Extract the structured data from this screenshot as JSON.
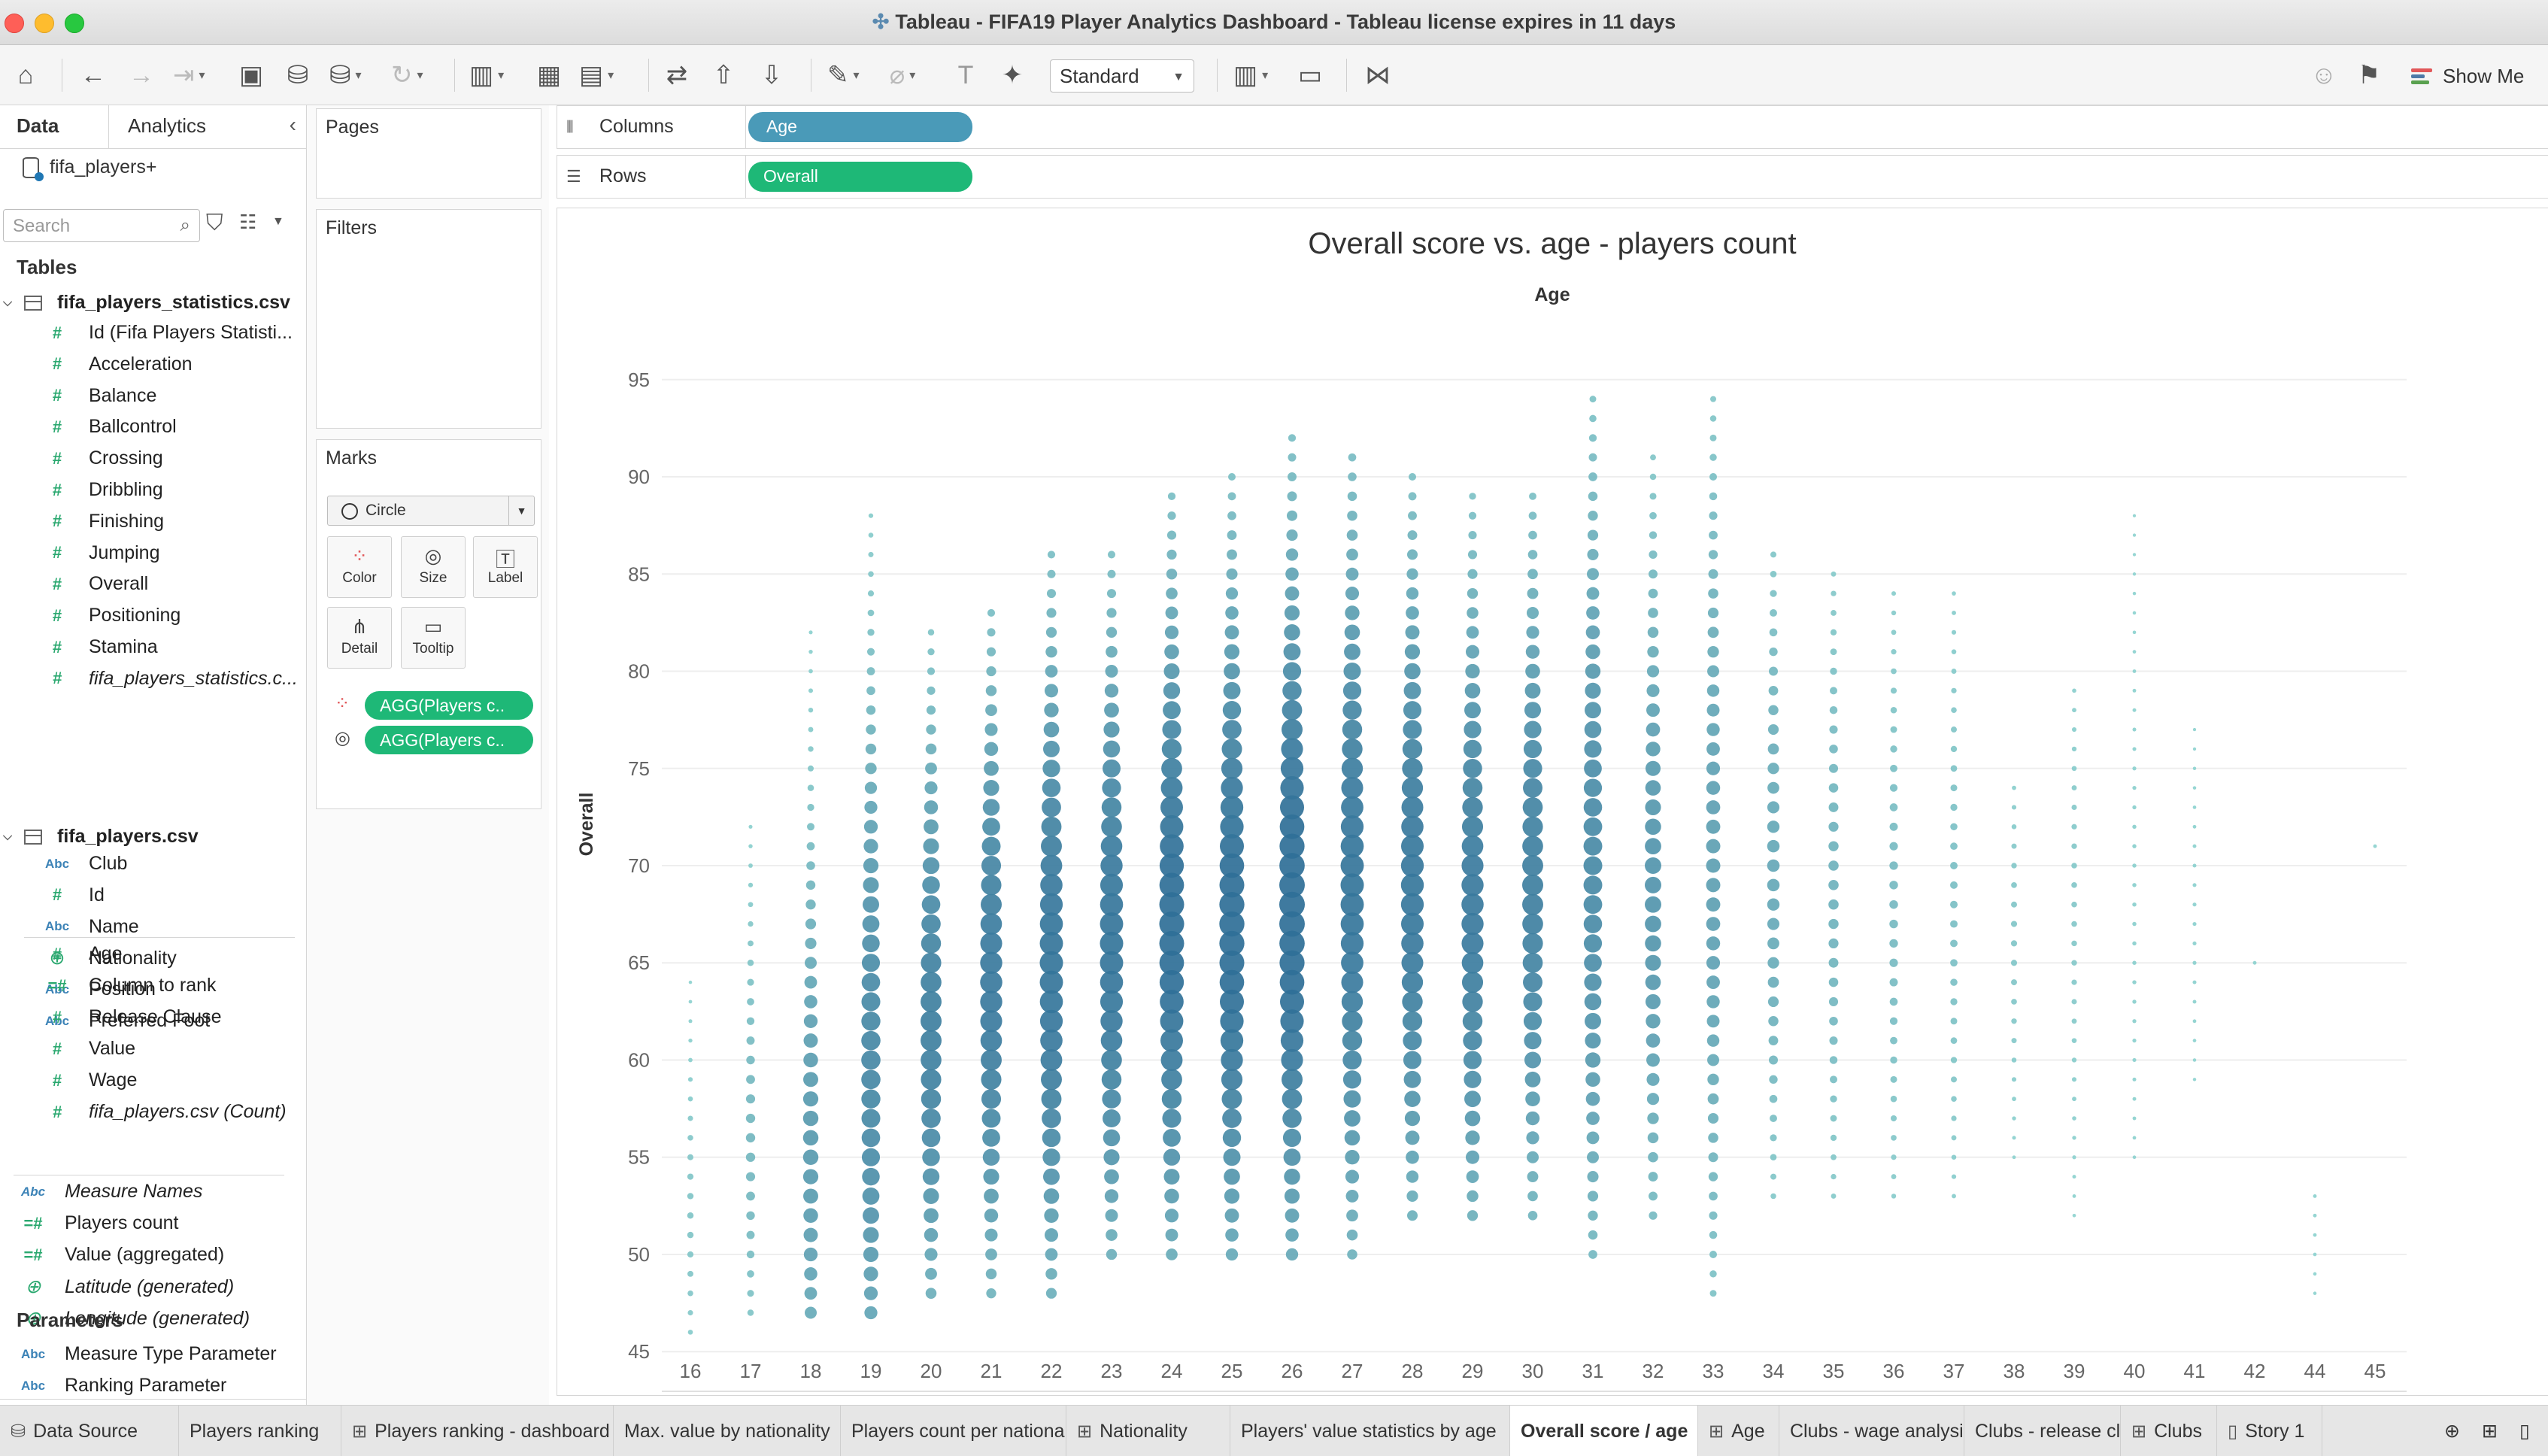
{
  "window": {
    "title": "Tableau - FIFA19 Player Analytics Dashboard  - Tableau license expires in 11 days"
  },
  "toolbar": {
    "fit_value": "Standard",
    "show_me_label": "Show Me",
    "show_me_colors": [
      "#e15759",
      "#4e79a7",
      "#59a14f",
      "#b07aa1"
    ]
  },
  "data_pane": {
    "tabs": {
      "data": "Data",
      "analytics": "Analytics"
    },
    "datasource": "fifa_players+",
    "search_placeholder": "Search",
    "tables_header": "Tables",
    "table1": {
      "name": "fifa_players_statistics.csv",
      "fields": [
        {
          "name": "Id (Fifa Players Statisti...",
          "icon": "#",
          "kind": "num"
        },
        {
          "name": "Acceleration",
          "icon": "#",
          "kind": "num"
        },
        {
          "name": "Balance",
          "icon": "#",
          "kind": "num"
        },
        {
          "name": "Ballcontrol",
          "icon": "#",
          "kind": "num"
        },
        {
          "name": "Crossing",
          "icon": "#",
          "kind": "num"
        },
        {
          "name": "Dribbling",
          "icon": "#",
          "kind": "num"
        },
        {
          "name": "Finishing",
          "icon": "#",
          "kind": "num"
        },
        {
          "name": "Jumping",
          "icon": "#",
          "kind": "num"
        },
        {
          "name": "Overall",
          "icon": "#",
          "kind": "num"
        },
        {
          "name": "Positioning",
          "icon": "#",
          "kind": "num"
        },
        {
          "name": "Stamina",
          "icon": "#",
          "kind": "num"
        },
        {
          "name": "fifa_players_statistics.c...",
          "icon": "#",
          "kind": "num",
          "italic": true
        }
      ]
    },
    "table2": {
      "name": "fifa_players.csv",
      "fields": [
        {
          "name": "Club",
          "icon": "Abc",
          "kind": "dim"
        },
        {
          "name": "Id",
          "icon": "#",
          "kind": "num"
        },
        {
          "name": "Name",
          "icon": "Abc",
          "kind": "dim"
        },
        {
          "name": "Nationality",
          "icon": "⊕",
          "kind": "geo"
        },
        {
          "name": "Position",
          "icon": "Abc",
          "kind": "dim"
        },
        {
          "name": "Preferred Foot",
          "icon": "Abc",
          "kind": "dim"
        },
        {
          "name": "Age",
          "icon": "#",
          "kind": "num"
        },
        {
          "name": "Column to rank",
          "icon": "=#",
          "kind": "num"
        },
        {
          "name": "Release Clause",
          "icon": "#",
          "kind": "num"
        },
        {
          "name": "Value",
          "icon": "#",
          "kind": "num"
        },
        {
          "name": "Wage",
          "icon": "#",
          "kind": "num"
        },
        {
          "name": "fifa_players.csv (Count)",
          "icon": "#",
          "kind": "num",
          "italic": true
        }
      ]
    },
    "extra_fields": [
      {
        "name": "Measure Names",
        "icon": "Abc",
        "kind": "dim",
        "italic": true
      },
      {
        "name": "Players count",
        "icon": "=#",
        "kind": "num"
      },
      {
        "name": "Value (aggregated)",
        "icon": "=#",
        "kind": "num"
      },
      {
        "name": "Latitude (generated)",
        "icon": "⊕",
        "kind": "geo",
        "italic": true
      },
      {
        "name": "Longitude (generated)",
        "icon": "⊕",
        "kind": "geo",
        "italic": true
      }
    ],
    "parameters_header": "Parameters",
    "parameters": [
      {
        "name": "Measure Type Parameter",
        "icon": "Abc",
        "kind": "dim"
      },
      {
        "name": "Ranking Parameter",
        "icon": "Abc",
        "kind": "dim"
      }
    ]
  },
  "cards": {
    "pages": "Pages",
    "filters": "Filters",
    "marks": "Marks",
    "mark_type": "Circle",
    "buttons": {
      "color": "Color",
      "size": "Size",
      "label": "Label",
      "detail": "Detail",
      "tooltip": "Tooltip"
    },
    "pills": [
      "AGG(Players c..",
      "AGG(Players c.."
    ]
  },
  "shelves": {
    "columns_label": "Columns",
    "columns_pill": "Age",
    "rows_label": "Rows",
    "rows_pill": "Overall"
  },
  "sheet_tabs": [
    {
      "label": "Data Source",
      "icon": "datasource-icon"
    },
    {
      "label": "Players ranking",
      "icon": ""
    },
    {
      "label": "Players ranking - dashboard",
      "icon": "dashboard-icon"
    },
    {
      "label": "Max. value by nationality",
      "icon": ""
    },
    {
      "label": "Players count per nationality",
      "icon": ""
    },
    {
      "label": "Nationality",
      "icon": "dashboard-icon"
    },
    {
      "label": "Players' value statistics by age",
      "icon": ""
    },
    {
      "label": "Overall score / age",
      "icon": "",
      "active": true
    },
    {
      "label": "Age",
      "icon": "dashboard-icon"
    },
    {
      "label": "Clubs - wage analysis",
      "icon": ""
    },
    {
      "label": "Clubs - release clause",
      "icon": ""
    },
    {
      "label": "Clubs",
      "icon": "dashboard-icon"
    },
    {
      "label": "Story 1",
      "icon": "story-icon"
    }
  ],
  "colors": {
    "pill_green": "#1eb877",
    "pill_blue": "#4a9ab8",
    "mark_light": "#8fd4d0",
    "mark_dark": "#2f6f97"
  },
  "chart_data": {
    "type": "scatter",
    "title": "Overall score vs. age - players count",
    "xlabel": "Age",
    "ylabel": "Overall",
    "x_categories": [
      16,
      17,
      18,
      19,
      20,
      21,
      22,
      23,
      24,
      25,
      26,
      27,
      28,
      29,
      30,
      31,
      32,
      33,
      34,
      35,
      36,
      37,
      38,
      39,
      40,
      41,
      42,
      44,
      45
    ],
    "ylim": [
      45,
      95
    ],
    "y_ticks": [
      45,
      50,
      55,
      60,
      65,
      70,
      75,
      80,
      85,
      90,
      95
    ],
    "grid": true,
    "encoding": "circle size and color = players count",
    "columns": [
      {
        "age": 16,
        "from": 46,
        "to": 64,
        "peak": 52,
        "max": 0.15
      },
      {
        "age": 17,
        "from": 47,
        "to": 72,
        "peak": 56,
        "max": 0.28
      },
      {
        "age": 18,
        "from": 47,
        "to": 82,
        "peak": 56,
        "max": 0.55
      },
      {
        "age": 19,
        "from": 47,
        "to": 88,
        "peak": 60,
        "max": 0.72
      },
      {
        "age": 20,
        "from": 48,
        "to": 82,
        "peak": 62,
        "max": 0.8
      },
      {
        "age": 21,
        "from": 48,
        "to": 83,
        "peak": 64,
        "max": 0.85
      },
      {
        "age": 22,
        "from": 48,
        "to": 86,
        "peak": 65,
        "max": 0.9
      },
      {
        "age": 23,
        "from": 50,
        "to": 86,
        "peak": 66,
        "max": 0.9
      },
      {
        "age": 24,
        "from": 50,
        "to": 89,
        "peak": 67,
        "max": 0.97
      },
      {
        "age": 25,
        "from": 50,
        "to": 90,
        "peak": 67,
        "max": 0.98
      },
      {
        "age": 26,
        "from": 50,
        "to": 92,
        "peak": 68,
        "max": 1.0
      },
      {
        "age": 27,
        "from": 50,
        "to": 91,
        "peak": 69,
        "max": 0.9
      },
      {
        "age": 28,
        "from": 52,
        "to": 90,
        "peak": 69,
        "max": 0.88
      },
      {
        "age": 29,
        "from": 52,
        "to": 89,
        "peak": 68,
        "max": 0.85
      },
      {
        "age": 30,
        "from": 52,
        "to": 89,
        "peak": 69,
        "max": 0.8
      },
      {
        "age": 31,
        "from": 50,
        "to": 94,
        "peak": 70,
        "max": 0.7
      },
      {
        "age": 32,
        "from": 52,
        "to": 91,
        "peak": 69,
        "max": 0.6
      },
      {
        "age": 33,
        "from": 48,
        "to": 94,
        "peak": 70,
        "max": 0.5
      },
      {
        "age": 34,
        "from": 53,
        "to": 86,
        "peak": 70,
        "max": 0.42
      },
      {
        "age": 35,
        "from": 53,
        "to": 85,
        "peak": 69,
        "max": 0.32
      },
      {
        "age": 36,
        "from": 53,
        "to": 84,
        "peak": 68,
        "max": 0.25
      },
      {
        "age": 37,
        "from": 53,
        "to": 84,
        "peak": 68,
        "max": 0.2
      },
      {
        "age": 38,
        "from": 55,
        "to": 74,
        "peak": 66,
        "max": 0.14
      },
      {
        "age": 39,
        "from": 52,
        "to": 79,
        "peak": 68,
        "max": 0.12
      },
      {
        "age": 40,
        "from": 55,
        "to": 88,
        "peak": 68,
        "max": 0.05
      },
      {
        "age": 41,
        "from": 59,
        "to": 77,
        "peak": 67,
        "max": 0.04
      },
      {
        "age": 42,
        "from": 65,
        "to": 65,
        "peak": 65,
        "max": 0.03
      },
      {
        "age": 44,
        "from": 48,
        "to": 53,
        "peak": 53,
        "max": 0.03
      },
      {
        "age": 45,
        "from": 71,
        "to": 71,
        "peak": 71,
        "max": 0.03
      }
    ]
  }
}
